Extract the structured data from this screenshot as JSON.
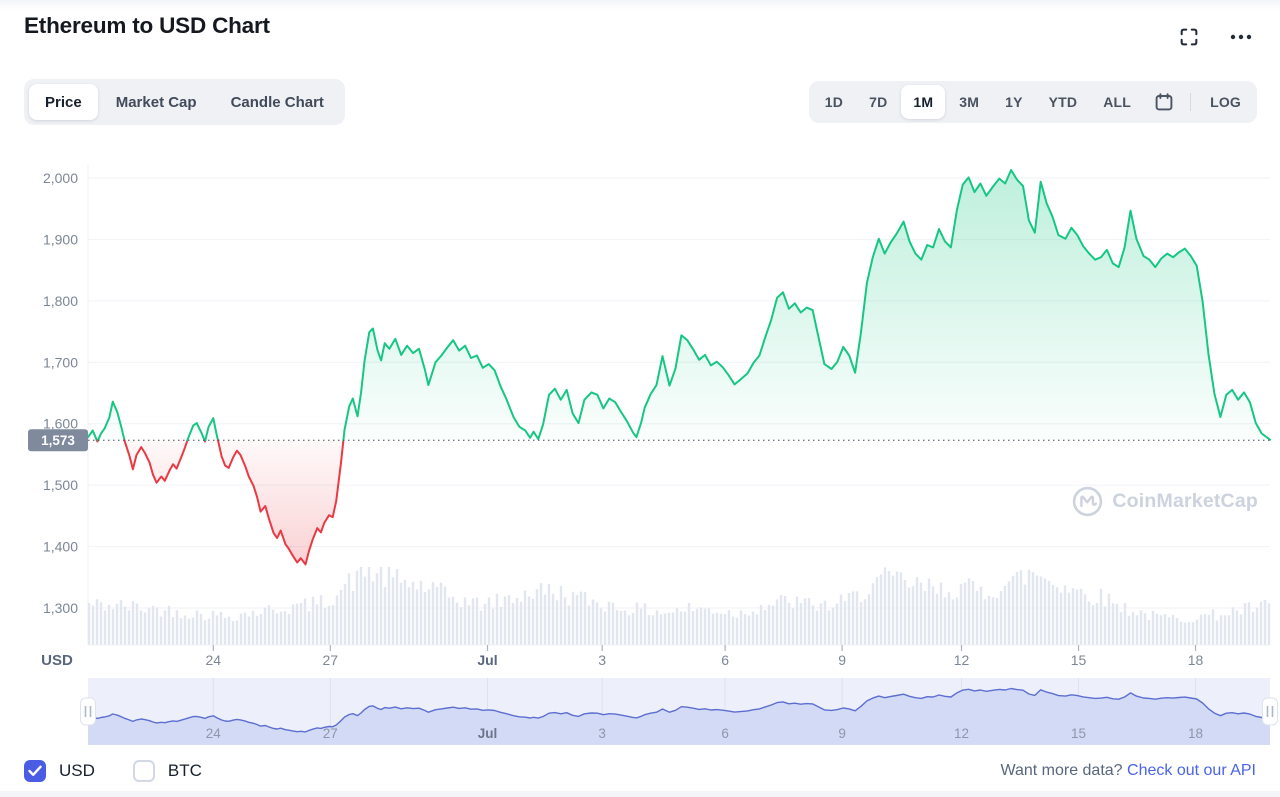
{
  "header": {
    "title": "Ethereum to USD Chart"
  },
  "tabs": {
    "items": [
      "Price",
      "Market Cap",
      "Candle Chart"
    ],
    "active": "Price"
  },
  "toolbar": {
    "ranges": [
      "1D",
      "7D",
      "1M",
      "3M",
      "1Y",
      "YTD",
      "ALL"
    ],
    "active_range": "1M",
    "log_label": "LOG"
  },
  "watermark": {
    "text": "CoinMarketCap"
  },
  "footer": {
    "currencies": [
      {
        "label": "USD",
        "checked": true
      },
      {
        "label": "BTC",
        "checked": false
      }
    ],
    "prompt": "Want more data?",
    "link": "Check out our API"
  },
  "colors": {
    "up": "#16c784",
    "down": "#ea3943",
    "checkbox": "#4a5ce4",
    "link": "#4a63e7",
    "volume_bar": "#e2e6ee",
    "grid": "#f0f2f6",
    "axis_text": "#7c8796",
    "badge_bg": "#7f8a9d",
    "dotted_line": "#454d5a",
    "navigator_bg": "#edf0fa",
    "navigator_fill": "#d3daf5",
    "navigator_line": "#5d6ed1"
  },
  "chart_data": {
    "type": "line",
    "title": "Ethereum to USD Chart",
    "unit": "USD",
    "current_price": 1573,
    "current_price_label": "1,573",
    "y_ticks": [
      1300,
      1400,
      1500,
      1600,
      1700,
      1800,
      1900,
      2000
    ],
    "y_tick_labels": [
      "1,300",
      "1,400",
      "1,500",
      "1,600",
      "1,700",
      "1,800",
      "1,900",
      "2,000"
    ],
    "ylim": [
      1290,
      2040
    ],
    "x_ticks": [
      {
        "t": 0.106,
        "label": "24"
      },
      {
        "t": 0.205,
        "label": "27"
      },
      {
        "t": 0.338,
        "label": "Jul",
        "bold": true
      },
      {
        "t": 0.435,
        "label": "3"
      },
      {
        "t": 0.539,
        "label": "6"
      },
      {
        "t": 0.638,
        "label": "9"
      },
      {
        "t": 0.739,
        "label": "12"
      },
      {
        "t": 0.838,
        "label": "15"
      },
      {
        "t": 0.937,
        "label": "18"
      }
    ],
    "points": [
      [
        0.0,
        1578
      ],
      [
        0.004,
        1589
      ],
      [
        0.008,
        1571
      ],
      [
        0.011,
        1584
      ],
      [
        0.014,
        1592
      ],
      [
        0.018,
        1610
      ],
      [
        0.021,
        1636
      ],
      [
        0.025,
        1618
      ],
      [
        0.028,
        1596
      ],
      [
        0.031,
        1572
      ],
      [
        0.035,
        1548
      ],
      [
        0.038,
        1526
      ],
      [
        0.041,
        1549
      ],
      [
        0.045,
        1562
      ],
      [
        0.048,
        1553
      ],
      [
        0.052,
        1537
      ],
      [
        0.055,
        1517
      ],
      [
        0.058,
        1504
      ],
      [
        0.062,
        1514
      ],
      [
        0.065,
        1507
      ],
      [
        0.069,
        1524
      ],
      [
        0.072,
        1534
      ],
      [
        0.075,
        1527
      ],
      [
        0.079,
        1546
      ],
      [
        0.082,
        1561
      ],
      [
        0.085,
        1578
      ],
      [
        0.089,
        1597
      ],
      [
        0.092,
        1601
      ],
      [
        0.096,
        1585
      ],
      [
        0.099,
        1571
      ],
      [
        0.102,
        1595
      ],
      [
        0.106,
        1609
      ],
      [
        0.109,
        1581
      ],
      [
        0.113,
        1547
      ],
      [
        0.116,
        1532
      ],
      [
        0.119,
        1528
      ],
      [
        0.123,
        1546
      ],
      [
        0.126,
        1556
      ],
      [
        0.129,
        1549
      ],
      [
        0.133,
        1531
      ],
      [
        0.136,
        1514
      ],
      [
        0.14,
        1499
      ],
      [
        0.143,
        1481
      ],
      [
        0.146,
        1457
      ],
      [
        0.15,
        1466
      ],
      [
        0.153,
        1446
      ],
      [
        0.157,
        1422
      ],
      [
        0.16,
        1414
      ],
      [
        0.163,
        1426
      ],
      [
        0.167,
        1404
      ],
      [
        0.17,
        1396
      ],
      [
        0.173,
        1386
      ],
      [
        0.177,
        1374
      ],
      [
        0.18,
        1381
      ],
      [
        0.184,
        1371
      ],
      [
        0.187,
        1393
      ],
      [
        0.19,
        1411
      ],
      [
        0.194,
        1430
      ],
      [
        0.197,
        1423
      ],
      [
        0.2,
        1439
      ],
      [
        0.204,
        1451
      ],
      [
        0.207,
        1448
      ],
      [
        0.21,
        1474
      ],
      [
        0.214,
        1535
      ],
      [
        0.217,
        1590
      ],
      [
        0.221,
        1628
      ],
      [
        0.224,
        1641
      ],
      [
        0.228,
        1612
      ],
      [
        0.231,
        1650
      ],
      [
        0.234,
        1703
      ],
      [
        0.238,
        1749
      ],
      [
        0.241,
        1755
      ],
      [
        0.245,
        1719
      ],
      [
        0.248,
        1703
      ],
      [
        0.251,
        1731
      ],
      [
        0.255,
        1722
      ],
      [
        0.26,
        1738
      ],
      [
        0.265,
        1712
      ],
      [
        0.27,
        1727
      ],
      [
        0.275,
        1715
      ],
      [
        0.28,
        1722
      ],
      [
        0.285,
        1688
      ],
      [
        0.288,
        1663
      ],
      [
        0.294,
        1700
      ],
      [
        0.299,
        1711
      ],
      [
        0.304,
        1724
      ],
      [
        0.309,
        1736
      ],
      [
        0.314,
        1719
      ],
      [
        0.319,
        1727
      ],
      [
        0.324,
        1707
      ],
      [
        0.329,
        1711
      ],
      [
        0.334,
        1691
      ],
      [
        0.339,
        1697
      ],
      [
        0.344,
        1687
      ],
      [
        0.349,
        1661
      ],
      [
        0.354,
        1640
      ],
      [
        0.36,
        1611
      ],
      [
        0.365,
        1595
      ],
      [
        0.37,
        1589
      ],
      [
        0.374,
        1577
      ],
      [
        0.377,
        1587
      ],
      [
        0.381,
        1575
      ],
      [
        0.385,
        1599
      ],
      [
        0.39,
        1647
      ],
      [
        0.395,
        1657
      ],
      [
        0.4,
        1639
      ],
      [
        0.405,
        1655
      ],
      [
        0.41,
        1617
      ],
      [
        0.415,
        1601
      ],
      [
        0.42,
        1639
      ],
      [
        0.426,
        1651
      ],
      [
        0.431,
        1647
      ],
      [
        0.436,
        1625
      ],
      [
        0.441,
        1641
      ],
      [
        0.446,
        1635
      ],
      [
        0.451,
        1619
      ],
      [
        0.456,
        1604
      ],
      [
        0.461,
        1586
      ],
      [
        0.464,
        1578
      ],
      [
        0.468,
        1602
      ],
      [
        0.471,
        1626
      ],
      [
        0.476,
        1648
      ],
      [
        0.481,
        1663
      ],
      [
        0.486,
        1710
      ],
      [
        0.492,
        1662
      ],
      [
        0.497,
        1690
      ],
      [
        0.502,
        1744
      ],
      [
        0.507,
        1736
      ],
      [
        0.512,
        1721
      ],
      [
        0.517,
        1704
      ],
      [
        0.522,
        1712
      ],
      [
        0.527,
        1695
      ],
      [
        0.532,
        1701
      ],
      [
        0.537,
        1692
      ],
      [
        0.542,
        1679
      ],
      [
        0.547,
        1664
      ],
      [
        0.552,
        1672
      ],
      [
        0.558,
        1682
      ],
      [
        0.563,
        1699
      ],
      [
        0.568,
        1711
      ],
      [
        0.573,
        1741
      ],
      [
        0.578,
        1769
      ],
      [
        0.583,
        1805
      ],
      [
        0.588,
        1814
      ],
      [
        0.593,
        1787
      ],
      [
        0.598,
        1796
      ],
      [
        0.603,
        1781
      ],
      [
        0.608,
        1789
      ],
      [
        0.613,
        1785
      ],
      [
        0.618,
        1741
      ],
      [
        0.623,
        1697
      ],
      [
        0.629,
        1689
      ],
      [
        0.634,
        1701
      ],
      [
        0.639,
        1725
      ],
      [
        0.644,
        1711
      ],
      [
        0.649,
        1683
      ],
      [
        0.654,
        1749
      ],
      [
        0.659,
        1829
      ],
      [
        0.664,
        1871
      ],
      [
        0.669,
        1901
      ],
      [
        0.674,
        1877
      ],
      [
        0.679,
        1895
      ],
      [
        0.684,
        1909
      ],
      [
        0.69,
        1929
      ],
      [
        0.695,
        1897
      ],
      [
        0.7,
        1877
      ],
      [
        0.705,
        1867
      ],
      [
        0.71,
        1891
      ],
      [
        0.715,
        1887
      ],
      [
        0.72,
        1917
      ],
      [
        0.725,
        1897
      ],
      [
        0.73,
        1887
      ],
      [
        0.735,
        1947
      ],
      [
        0.74,
        1989
      ],
      [
        0.745,
        2001
      ],
      [
        0.75,
        1977
      ],
      [
        0.755,
        1991
      ],
      [
        0.76,
        1971
      ],
      [
        0.766,
        1987
      ],
      [
        0.771,
        1999
      ],
      [
        0.776,
        1991
      ],
      [
        0.781,
        2013
      ],
      [
        0.786,
        1997
      ],
      [
        0.791,
        1987
      ],
      [
        0.796,
        1931
      ],
      [
        0.801,
        1911
      ],
      [
        0.806,
        1994
      ],
      [
        0.811,
        1959
      ],
      [
        0.816,
        1937
      ],
      [
        0.821,
        1907
      ],
      [
        0.827,
        1901
      ],
      [
        0.832,
        1919
      ],
      [
        0.837,
        1907
      ],
      [
        0.842,
        1889
      ],
      [
        0.847,
        1877
      ],
      [
        0.852,
        1867
      ],
      [
        0.857,
        1871
      ],
      [
        0.862,
        1883
      ],
      [
        0.867,
        1861
      ],
      [
        0.872,
        1855
      ],
      [
        0.877,
        1887
      ],
      [
        0.882,
        1947
      ],
      [
        0.887,
        1901
      ],
      [
        0.893,
        1873
      ],
      [
        0.898,
        1867
      ],
      [
        0.903,
        1855
      ],
      [
        0.908,
        1869
      ],
      [
        0.913,
        1877
      ],
      [
        0.918,
        1871
      ],
      [
        0.923,
        1879
      ],
      [
        0.928,
        1885
      ],
      [
        0.933,
        1873
      ],
      [
        0.938,
        1857
      ],
      [
        0.943,
        1799
      ],
      [
        0.948,
        1713
      ],
      [
        0.953,
        1649
      ],
      [
        0.958,
        1611
      ],
      [
        0.963,
        1647
      ],
      [
        0.968,
        1655
      ],
      [
        0.973,
        1639
      ],
      [
        0.978,
        1651
      ],
      [
        0.983,
        1635
      ],
      [
        0.988,
        1601
      ],
      [
        0.993,
        1584
      ],
      [
        1.0,
        1574
      ]
    ],
    "volume_profile": [
      [
        0,
        0.52
      ],
      [
        0.03,
        0.5
      ],
      [
        0.06,
        0.46
      ],
      [
        0.09,
        0.4
      ],
      [
        0.12,
        0.37
      ],
      [
        0.15,
        0.44
      ],
      [
        0.18,
        0.5
      ],
      [
        0.2,
        0.55
      ],
      [
        0.22,
        0.78
      ],
      [
        0.235,
        0.97
      ],
      [
        0.25,
        0.88
      ],
      [
        0.27,
        0.8
      ],
      [
        0.29,
        0.72
      ],
      [
        0.31,
        0.6
      ],
      [
        0.33,
        0.52
      ],
      [
        0.35,
        0.56
      ],
      [
        0.37,
        0.66
      ],
      [
        0.39,
        0.7
      ],
      [
        0.41,
        0.62
      ],
      [
        0.43,
        0.55
      ],
      [
        0.45,
        0.48
      ],
      [
        0.47,
        0.45
      ],
      [
        0.49,
        0.42
      ],
      [
        0.51,
        0.47
      ],
      [
        0.53,
        0.45
      ],
      [
        0.55,
        0.4
      ],
      [
        0.57,
        0.5
      ],
      [
        0.59,
        0.56
      ],
      [
        0.61,
        0.52
      ],
      [
        0.63,
        0.5
      ],
      [
        0.65,
        0.62
      ],
      [
        0.665,
        0.8
      ],
      [
        0.68,
        0.85
      ],
      [
        0.7,
        0.76
      ],
      [
        0.72,
        0.7
      ],
      [
        0.74,
        0.74
      ],
      [
        0.76,
        0.68
      ],
      [
        0.78,
        0.8
      ],
      [
        0.8,
        0.93
      ],
      [
        0.82,
        0.8
      ],
      [
        0.84,
        0.68
      ],
      [
        0.86,
        0.6
      ],
      [
        0.88,
        0.46
      ],
      [
        0.9,
        0.37
      ],
      [
        0.92,
        0.34
      ],
      [
        0.94,
        0.36
      ],
      [
        0.96,
        0.4
      ],
      [
        0.98,
        0.46
      ],
      [
        1,
        0.5
      ]
    ],
    "legend": null,
    "grid": true,
    "navigator": {
      "shown": true,
      "range_selected": "full"
    }
  }
}
